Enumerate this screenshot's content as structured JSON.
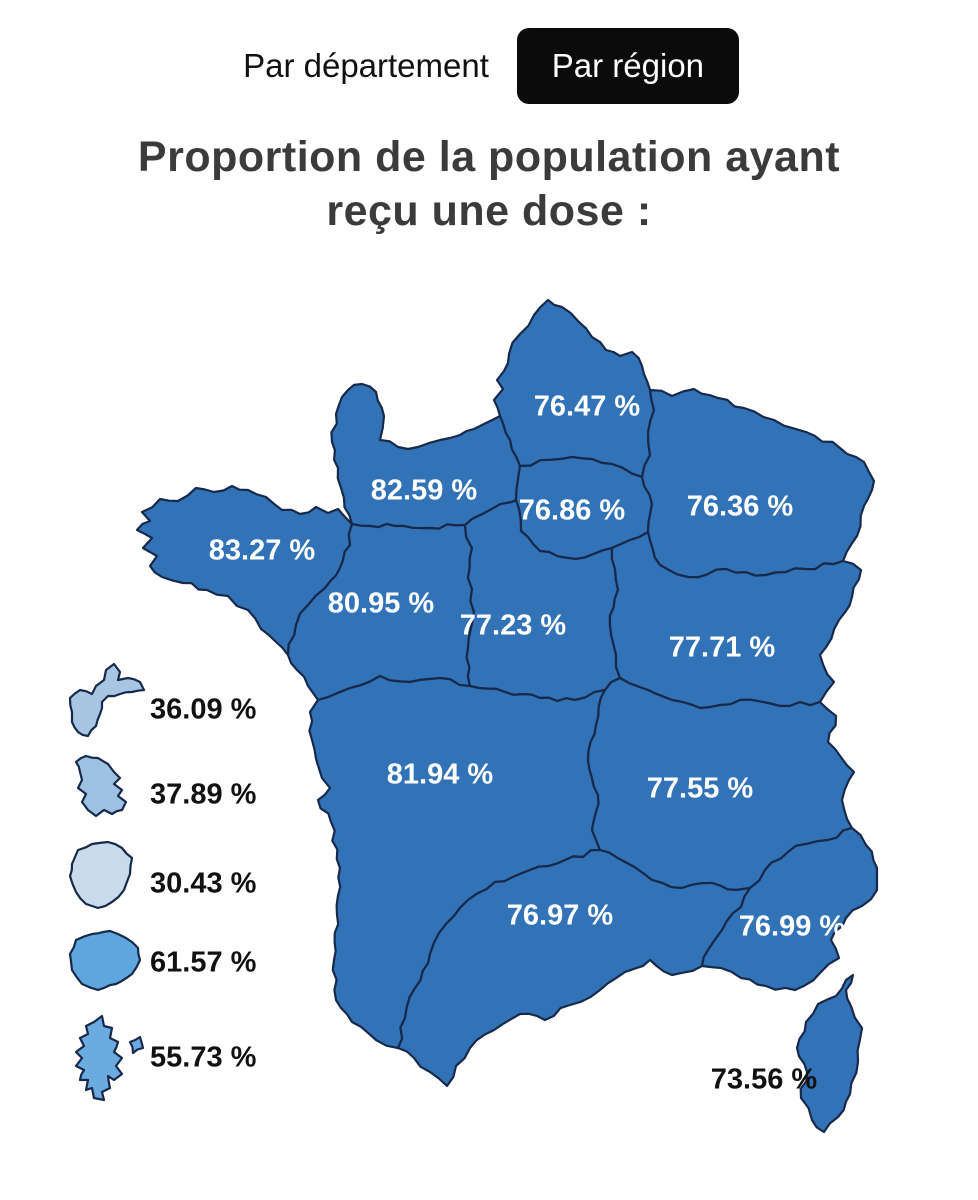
{
  "toggle": {
    "department": "Par département",
    "region": "Par région"
  },
  "title": {
    "line1": "Proportion de la population ayant",
    "line2": "reçu une dose :"
  },
  "colors": {
    "mainland": "#3273b7",
    "border": "#17294a",
    "map_label": "#ffffff",
    "dark_label": "#111111",
    "active_button_bg": "#0b0b0b",
    "active_button_text": "#ffffff",
    "guadeloupe": "#a6c6e3",
    "martinique": "#9dc1e0",
    "guyane": "#c9daeb",
    "la_reunion": "#60a6de",
    "mayotte": "#6babdf"
  },
  "chart_data": {
    "type": "choropleth",
    "title": "Proportion de la population ayant reçu une dose :",
    "unit": "%",
    "regions": [
      {
        "id": "hauts-de-france",
        "value": 76.47,
        "label": "76.47 %"
      },
      {
        "id": "normandie",
        "value": 82.59,
        "label": "82.59 %"
      },
      {
        "id": "ile-de-france",
        "value": 76.86,
        "label": "76.86 %"
      },
      {
        "id": "grand-est",
        "value": 76.36,
        "label": "76.36 %"
      },
      {
        "id": "bretagne",
        "value": 83.27,
        "label": "83.27 %"
      },
      {
        "id": "pays-de-la-loire",
        "value": 80.95,
        "label": "80.95 %"
      },
      {
        "id": "centre-val-de-loire",
        "value": 77.23,
        "label": "77.23 %"
      },
      {
        "id": "bourgogne-franche-comte",
        "value": 77.71,
        "label": "77.71 %"
      },
      {
        "id": "nouvelle-aquitaine",
        "value": 81.94,
        "label": "81.94 %"
      },
      {
        "id": "auvergne-rhone-alpes",
        "value": 77.55,
        "label": "77.55 %"
      },
      {
        "id": "occitanie",
        "value": 76.97,
        "label": "76.97 %"
      },
      {
        "id": "provence-alpes-cote-d-azur",
        "value": 76.99,
        "label": "76.99 %"
      },
      {
        "id": "corse",
        "value": 73.56,
        "label": "73.56 %"
      }
    ],
    "overseas": [
      {
        "id": "guadeloupe",
        "value": 36.09,
        "label": "36.09 %"
      },
      {
        "id": "martinique",
        "value": 37.89,
        "label": "37.89 %"
      },
      {
        "id": "guyane",
        "value": 30.43,
        "label": "30.43 %"
      },
      {
        "id": "la-reunion",
        "value": 61.57,
        "label": "61.57 %"
      },
      {
        "id": "mayotte",
        "value": 55.73,
        "label": "55.73 %"
      }
    ]
  }
}
